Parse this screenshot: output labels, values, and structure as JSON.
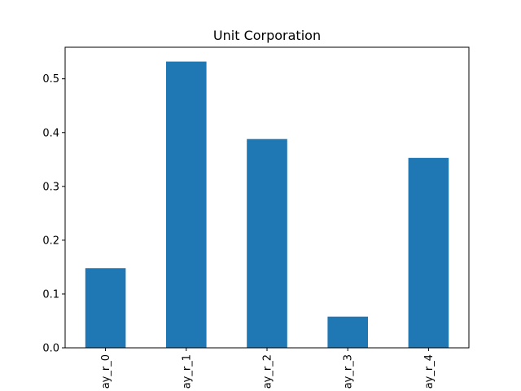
{
  "chart_data": {
    "type": "bar",
    "title": "Unit Corporation",
    "xlabel": "",
    "ylabel": "",
    "categories": [
      "ay_r_0",
      "ay_r_1",
      "ay_r_2",
      "ay_r_3",
      "ay_r_4"
    ],
    "values": [
      0.148,
      0.532,
      0.388,
      0.058,
      0.353
    ],
    "ylim": [
      0,
      0.5586
    ],
    "yticks": [
      0.0,
      0.1,
      0.2,
      0.3,
      0.4,
      0.5
    ],
    "ytick_labels": [
      "0.0",
      "0.1",
      "0.2",
      "0.3",
      "0.4",
      "0.5"
    ],
    "bar_color": "#1f77b4",
    "grid": false,
    "legend": "none"
  }
}
